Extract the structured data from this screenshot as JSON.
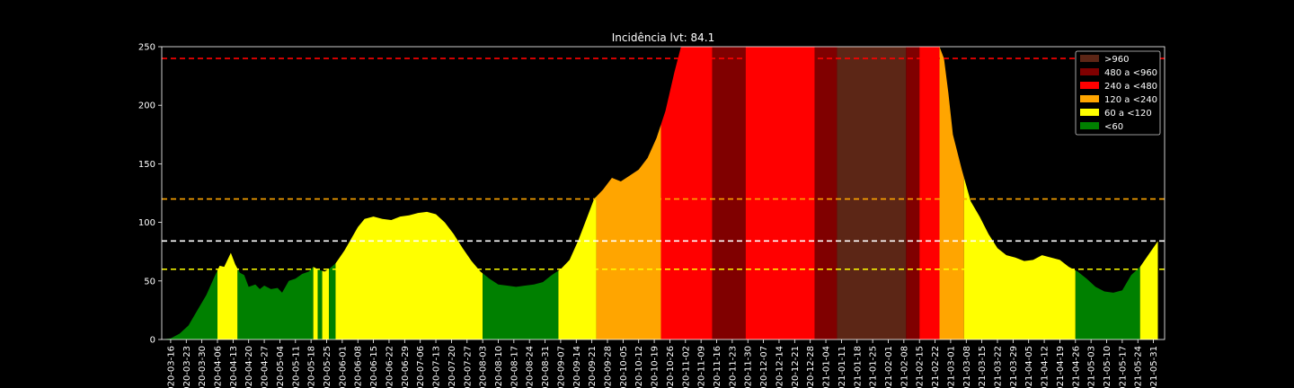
{
  "chart_data": {
    "type": "area",
    "title": "Incidência lvt: 84.1",
    "xlabel": "",
    "ylabel": "",
    "ylim": [
      0,
      250
    ],
    "yticks": [
      0,
      50,
      100,
      150,
      200,
      250
    ],
    "x_tick_labels": [
      "2020-03-16",
      "2020-03-23",
      "2020-03-30",
      "2020-04-06",
      "2020-04-13",
      "2020-04-20",
      "2020-04-27",
      "2020-05-04",
      "2020-05-11",
      "2020-05-18",
      "2020-05-25",
      "2020-06-01",
      "2020-06-08",
      "2020-06-15",
      "2020-06-22",
      "2020-06-29",
      "2020-07-06",
      "2020-07-13",
      "2020-07-20",
      "2020-07-27",
      "2020-08-03",
      "2020-08-10",
      "2020-08-17",
      "2020-08-24",
      "2020-08-31",
      "2020-09-07",
      "2020-09-14",
      "2020-09-21",
      "2020-09-28",
      "2020-10-05",
      "2020-10-12",
      "2020-10-19",
      "2020-10-26",
      "2020-11-02",
      "2020-11-09",
      "2020-11-16",
      "2020-11-23",
      "2020-11-30",
      "2020-12-07",
      "2020-12-14",
      "2020-12-21",
      "2020-12-28",
      "2021-01-04",
      "2021-01-11",
      "2021-01-18",
      "2021-01-25",
      "2021-02-01",
      "2021-02-08",
      "2021-02-15",
      "2021-02-22",
      "2021-03-01",
      "2021-03-08",
      "2021-03-15",
      "2021-03-22",
      "2021-03-29",
      "2021-04-05",
      "2021-04-12",
      "2021-04-19",
      "2021-04-26",
      "2021-05-03",
      "2021-05-10",
      "2021-05-17",
      "2021-05-24",
      "2021-05-31"
    ],
    "x_start": "2020-03-12",
    "x_end": "2021-06-05",
    "series": [
      {
        "points": [
          [
            "2020-03-12",
            0
          ],
          [
            "2020-03-16",
            1
          ],
          [
            "2020-03-20",
            5
          ],
          [
            "2020-03-24",
            12
          ],
          [
            "2020-03-28",
            25
          ],
          [
            "2020-04-01",
            38
          ],
          [
            "2020-04-05",
            55
          ],
          [
            "2020-04-07",
            63
          ],
          [
            "2020-04-09",
            62
          ],
          [
            "2020-04-11",
            70
          ],
          [
            "2020-04-12",
            74
          ],
          [
            "2020-04-14",
            64
          ],
          [
            "2020-04-16",
            57
          ],
          [
            "2020-04-18",
            55
          ],
          [
            "2020-04-20",
            45
          ],
          [
            "2020-04-23",
            47
          ],
          [
            "2020-04-25",
            43
          ],
          [
            "2020-04-27",
            46
          ],
          [
            "2020-04-30",
            43
          ],
          [
            "2020-05-03",
            44
          ],
          [
            "2020-05-05",
            40
          ],
          [
            "2020-05-08",
            50
          ],
          [
            "2020-05-11",
            52
          ],
          [
            "2020-05-14",
            56
          ],
          [
            "2020-05-17",
            58
          ],
          [
            "2020-05-19",
            62
          ],
          [
            "2020-05-21",
            60
          ],
          [
            "2020-05-24",
            58
          ],
          [
            "2020-05-26",
            60
          ],
          [
            "2020-05-29",
            65
          ],
          [
            "2020-06-02",
            76
          ],
          [
            "2020-06-05",
            86
          ],
          [
            "2020-06-08",
            96
          ],
          [
            "2020-06-11",
            103
          ],
          [
            "2020-06-15",
            105
          ],
          [
            "2020-06-19",
            103
          ],
          [
            "2020-06-23",
            102
          ],
          [
            "2020-06-27",
            105
          ],
          [
            "2020-07-01",
            106
          ],
          [
            "2020-07-05",
            108
          ],
          [
            "2020-07-09",
            109
          ],
          [
            "2020-07-13",
            107
          ],
          [
            "2020-07-17",
            100
          ],
          [
            "2020-07-21",
            90
          ],
          [
            "2020-07-25",
            78
          ],
          [
            "2020-07-29",
            67
          ],
          [
            "2020-08-02",
            58
          ],
          [
            "2020-08-06",
            52
          ],
          [
            "2020-08-10",
            47
          ],
          [
            "2020-08-14",
            46
          ],
          [
            "2020-08-18",
            45
          ],
          [
            "2020-08-22",
            46
          ],
          [
            "2020-08-26",
            47
          ],
          [
            "2020-08-30",
            49
          ],
          [
            "2020-09-03",
            55
          ],
          [
            "2020-09-07",
            60
          ],
          [
            "2020-09-11",
            68
          ],
          [
            "2020-09-15",
            85
          ],
          [
            "2020-09-19",
            105
          ],
          [
            "2020-09-22",
            120
          ],
          [
            "2020-09-26",
            128
          ],
          [
            "2020-09-30",
            138
          ],
          [
            "2020-10-04",
            135
          ],
          [
            "2020-10-08",
            140
          ],
          [
            "2020-10-12",
            145
          ],
          [
            "2020-10-16",
            155
          ],
          [
            "2020-10-20",
            172
          ],
          [
            "2020-10-24",
            195
          ],
          [
            "2020-10-28",
            228
          ],
          [
            "2020-10-31",
            250
          ],
          [
            "2021-02-24",
            250
          ],
          [
            "2021-02-26",
            240
          ],
          [
            "2021-02-28",
            210
          ],
          [
            "2021-03-02",
            175
          ],
          [
            "2021-03-06",
            145
          ],
          [
            "2021-03-10",
            118
          ],
          [
            "2021-03-14",
            105
          ],
          [
            "2021-03-18",
            90
          ],
          [
            "2021-03-22",
            78
          ],
          [
            "2021-03-26",
            72
          ],
          [
            "2021-03-30",
            70
          ],
          [
            "2021-04-03",
            67
          ],
          [
            "2021-04-07",
            68
          ],
          [
            "2021-04-11",
            72
          ],
          [
            "2021-04-15",
            70
          ],
          [
            "2021-04-19",
            68
          ],
          [
            "2021-04-23",
            62
          ],
          [
            "2021-04-27",
            58
          ],
          [
            "2021-05-01",
            52
          ],
          [
            "2021-05-05",
            45
          ],
          [
            "2021-05-09",
            41
          ],
          [
            "2021-05-13",
            40
          ],
          [
            "2021-05-17",
            42
          ],
          [
            "2021-05-21",
            55
          ],
          [
            "2021-05-25",
            62
          ],
          [
            "2021-05-29",
            73
          ],
          [
            "2021-06-02",
            84
          ]
        ]
      }
    ],
    "bands": [
      {
        "start": "2020-03-12",
        "end": "2020-04-06",
        "color": "#008000"
      },
      {
        "start": "2020-04-06",
        "end": "2020-04-15",
        "color": "#ffff00"
      },
      {
        "start": "2020-04-15",
        "end": "2020-05-19",
        "color": "#008000"
      },
      {
        "start": "2020-05-19",
        "end": "2020-05-21",
        "color": "#ffff00"
      },
      {
        "start": "2020-05-21",
        "end": "2020-05-23",
        "color": "#008000"
      },
      {
        "start": "2020-05-23",
        "end": "2020-05-26",
        "color": "#ffff00"
      },
      {
        "start": "2020-05-26",
        "end": "2020-05-29",
        "color": "#008000"
      },
      {
        "start": "2020-05-29",
        "end": "2020-08-03",
        "color": "#ffff00"
      },
      {
        "start": "2020-08-03",
        "end": "2020-09-06",
        "color": "#008000"
      },
      {
        "start": "2020-09-06",
        "end": "2020-09-23",
        "color": "#ffff00"
      },
      {
        "start": "2020-09-23",
        "end": "2020-10-22",
        "color": "#ffa500"
      },
      {
        "start": "2020-10-22",
        "end": "2020-11-14",
        "color": "#ff0000"
      },
      {
        "start": "2020-11-14",
        "end": "2020-11-29",
        "color": "#800000"
      },
      {
        "start": "2020-11-29",
        "end": "2020-12-30",
        "color": "#ff0000"
      },
      {
        "start": "2020-12-30",
        "end": "2021-01-09",
        "color": "#800000"
      },
      {
        "start": "2021-01-09",
        "end": "2021-02-09",
        "color": "#5c2616"
      },
      {
        "start": "2021-02-09",
        "end": "2021-02-15",
        "color": "#800000"
      },
      {
        "start": "2021-02-15",
        "end": "2021-02-24",
        "color": "#ff0000"
      },
      {
        "start": "2021-02-24",
        "end": "2021-03-07",
        "color": "#ffa500"
      },
      {
        "start": "2021-03-07",
        "end": "2021-04-26",
        "color": "#ffff00"
      },
      {
        "start": "2021-04-26",
        "end": "2021-05-25",
        "color": "#008000"
      },
      {
        "start": "2021-05-25",
        "end": "2021-06-02",
        "color": "#ffff00"
      }
    ],
    "threshold_lines": [
      {
        "value": 240,
        "color": "#ff0000"
      },
      {
        "value": 120,
        "color": "#ffa500"
      },
      {
        "value": 84.1,
        "color": "#ffffff"
      },
      {
        "value": 60,
        "color": "#ffff00"
      }
    ],
    "legend": {
      "position": "top-right",
      "items": [
        {
          "label": ">960",
          "color": "#5c2616"
        },
        {
          "label": "480 a <960",
          "color": "#800000"
        },
        {
          "label": "240 a <480",
          "color": "#ff0000"
        },
        {
          "label": "120 a <240",
          "color": "#ffa500"
        },
        {
          "label": "60 a <120",
          "color": "#ffff00"
        },
        {
          "label": "<60",
          "color": "#008000"
        }
      ]
    }
  }
}
